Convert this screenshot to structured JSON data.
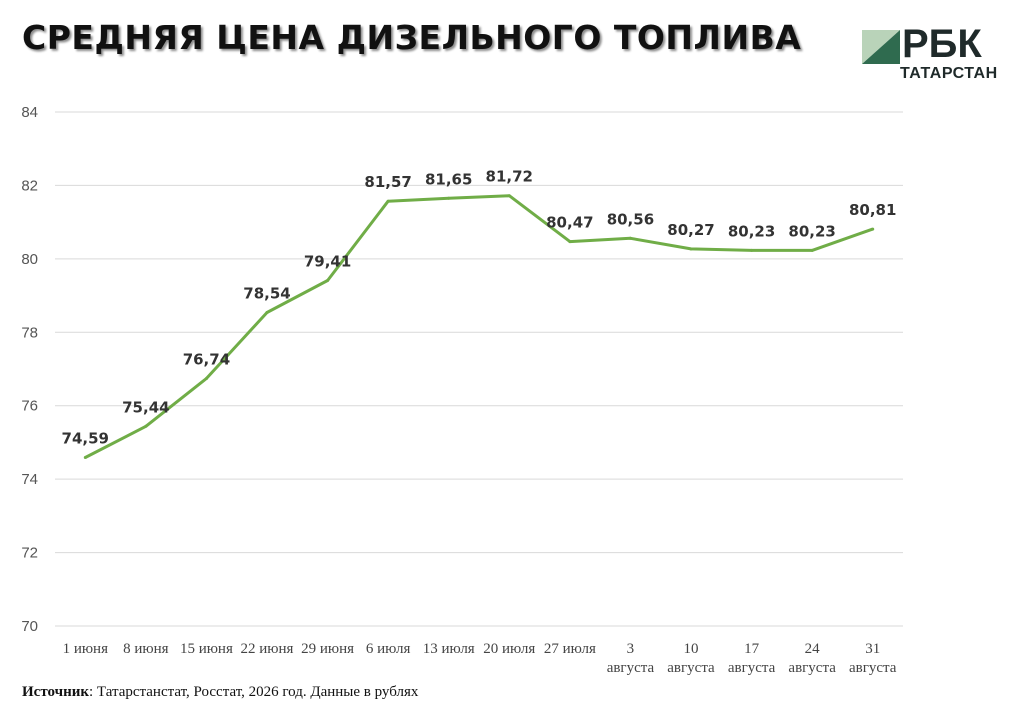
{
  "title": "СРЕДНЯЯ ЦЕНА ДИЗЕЛЬНОГО ТОПЛИВА",
  "logo": {
    "main": "РБК",
    "sub": "ТАТАРСТАН",
    "mark_color_light": "#b9d3b9",
    "mark_color_dark": "#2f6b4f"
  },
  "source": {
    "label": "Источник",
    "text": ": Татарстанстат, Росстат, 2026 год. Данные в рублях"
  },
  "colors": {
    "line": "#70ad47",
    "grid": "#d9d9d9"
  },
  "chart_data": {
    "type": "line",
    "title": "СРЕДНЯЯ ЦЕНА ДИЗЕЛЬНОГО ТОПЛИВА",
    "xlabel": "",
    "ylabel": "",
    "ylim": [
      70,
      84
    ],
    "yticks": [
      "70",
      "72",
      "74",
      "76",
      "78",
      "80",
      "82",
      "84"
    ],
    "grid": true,
    "categories": [
      "1 июня",
      "8 июня",
      "15 июня",
      "22 июня",
      "29 июня",
      "6 июля",
      "13 июля",
      "20 июля",
      "27 июля",
      "3 августа",
      "10 августа",
      "17 августа",
      "24 августа",
      "31 августа"
    ],
    "series": [
      {
        "values": [
          74.59,
          75.44,
          76.74,
          78.54,
          79.41,
          81.57,
          81.65,
          81.72,
          80.47,
          80.56,
          80.27,
          80.23,
          80.23,
          80.81
        ],
        "labels": [
          "74,59",
          "75,44",
          "76,74",
          "78,54",
          "79,41",
          "81,57",
          "81,65",
          "81,72",
          "80,47",
          "80,56",
          "80,27",
          "80,23",
          "80,23",
          "80,81"
        ]
      }
    ]
  }
}
